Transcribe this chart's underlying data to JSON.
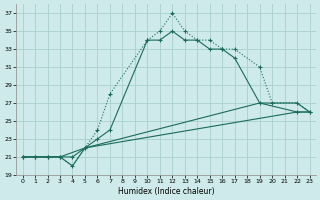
{
  "xlabel": "Humidex (Indice chaleur)",
  "background_color": "#ceeaea",
  "grid_color": "#aacfcf",
  "line_color": "#1a6b5a",
  "xlim": [
    -0.5,
    23.5
  ],
  "ylim": [
    19,
    38
  ],
  "xticks": [
    0,
    1,
    2,
    3,
    4,
    5,
    6,
    7,
    8,
    9,
    10,
    11,
    12,
    13,
    14,
    15,
    16,
    17,
    18,
    19,
    20,
    21,
    22,
    23
  ],
  "yticks": [
    19,
    21,
    23,
    25,
    27,
    29,
    31,
    33,
    35,
    37
  ],
  "s1_x": [
    0,
    1,
    2,
    3,
    4,
    5,
    6,
    7,
    10,
    11,
    12,
    13,
    14,
    15,
    16,
    17,
    19,
    20,
    22,
    23
  ],
  "s1_y": [
    21,
    21,
    21,
    21,
    20,
    22,
    24,
    28,
    34,
    35,
    37,
    35,
    34,
    34,
    33,
    33,
    31,
    27,
    27,
    26
  ],
  "s2_x": [
    0,
    1,
    2,
    3,
    4,
    5,
    6,
    7,
    10,
    11,
    12,
    13,
    14,
    15,
    16,
    17,
    19,
    22,
    23
  ],
  "s2_y": [
    21,
    21,
    21,
    21,
    21,
    22,
    23,
    24,
    34,
    34,
    35,
    34,
    34,
    33,
    33,
    32,
    27,
    26,
    26
  ],
  "s3_x": [
    0,
    2,
    3,
    5,
    19,
    22,
    23
  ],
  "s3_y": [
    21,
    21,
    21,
    22,
    27,
    27,
    26
  ],
  "s4_x": [
    0,
    3,
    4,
    5,
    22,
    23
  ],
  "s4_y": [
    21,
    21,
    20,
    22,
    26,
    26
  ]
}
